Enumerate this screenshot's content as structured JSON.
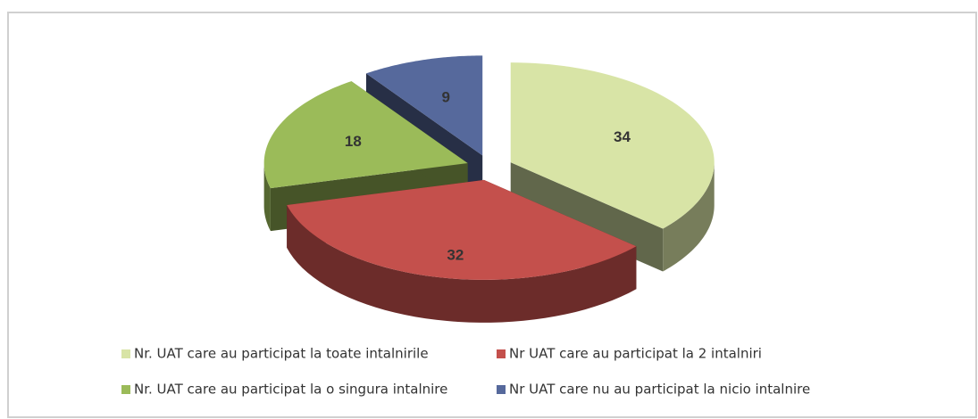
{
  "chart_data": {
    "type": "pie",
    "categories": [
      "Nr. UAT care au participat la toate intalnirile",
      "Nr UAT care au participat la 2 intalniri",
      "Nr. UAT care au participat la o singura intalnire",
      "Nr UAT care nu au participat la nicio intalnire"
    ],
    "values": [
      34,
      32,
      18,
      9
    ],
    "colors": [
      "#d8e4a6",
      "#c4504c",
      "#9bbb59",
      "#56699c"
    ]
  }
}
